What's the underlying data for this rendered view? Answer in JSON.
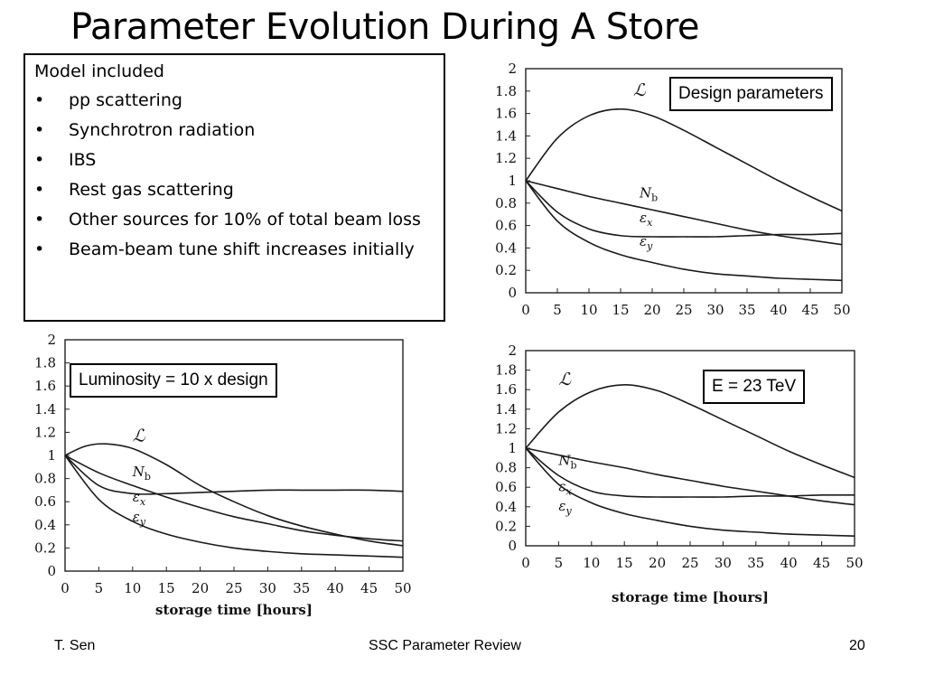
{
  "slide": {
    "title": "Parameter Evolution During A Store",
    "model_box": {
      "heading": "Model included",
      "bullet_glyph": "•",
      "items": [
        "pp scattering",
        "Synchrotron radiation",
        "IBS",
        "Rest gas scattering",
        "Other sources for 10% of total beam loss",
        "Beam-beam tune shift increases initially"
      ]
    },
    "footer": {
      "left": "T. Sen",
      "center": "SSC Parameter Review",
      "right": "20"
    }
  },
  "chart_data": [
    {
      "type": "line",
      "callout": "Design parameters",
      "xlabel": "",
      "ylabel": "",
      "xlim": [
        0,
        50
      ],
      "ylim": [
        0,
        2
      ],
      "xticks": [
        0,
        5,
        10,
        15,
        20,
        25,
        30,
        35,
        40,
        45,
        50
      ],
      "yticks": [
        0,
        0.2,
        0.4,
        0.6,
        0.8,
        1,
        1.2,
        1.4,
        1.6,
        1.8,
        2
      ],
      "series": [
        {
          "name": "ℒ",
          "label_at": [
            17,
            1.76
          ],
          "x": [
            0,
            5,
            10,
            15,
            20,
            25,
            30,
            35,
            40,
            45,
            50
          ],
          "y": [
            1.0,
            1.38,
            1.58,
            1.64,
            1.58,
            1.45,
            1.3,
            1.15,
            1.0,
            0.86,
            0.73
          ]
        },
        {
          "name": "Nb",
          "label_at": [
            18,
            0.85
          ],
          "x": [
            0,
            5,
            10,
            15,
            20,
            25,
            30,
            35,
            40,
            45,
            50
          ],
          "y": [
            1.0,
            0.93,
            0.86,
            0.8,
            0.74,
            0.68,
            0.62,
            0.56,
            0.51,
            0.47,
            0.43
          ]
        },
        {
          "name": "εx",
          "label_at": [
            18,
            0.63
          ],
          "x": [
            0,
            5,
            10,
            15,
            20,
            25,
            30,
            35,
            40,
            45,
            50
          ],
          "y": [
            1.0,
            0.72,
            0.57,
            0.51,
            0.5,
            0.5,
            0.5,
            0.51,
            0.52,
            0.52,
            0.53
          ]
        },
        {
          "name": "εy",
          "label_at": [
            18,
            0.42
          ],
          "x": [
            0,
            5,
            10,
            15,
            20,
            25,
            30,
            35,
            40,
            45,
            50
          ],
          "y": [
            1.0,
            0.64,
            0.45,
            0.34,
            0.27,
            0.21,
            0.17,
            0.15,
            0.13,
            0.12,
            0.11
          ]
        }
      ]
    },
    {
      "type": "line",
      "callout": "Luminosity = 10 x  design",
      "xlabel": "storage time [hours]",
      "ylabel": "",
      "xlim": [
        0,
        50
      ],
      "ylim": [
        0,
        2
      ],
      "xticks": [
        0,
        5,
        10,
        15,
        20,
        25,
        30,
        35,
        40,
        45,
        50
      ],
      "yticks": [
        0,
        0.2,
        0.4,
        0.6,
        0.8,
        1,
        1.2,
        1.4,
        1.6,
        1.8,
        2
      ],
      "series": [
        {
          "name": "ℒ",
          "label_at": [
            10,
            1.12
          ],
          "x": [
            0,
            3,
            6,
            10,
            15,
            20,
            25,
            30,
            35,
            40,
            45,
            50
          ],
          "y": [
            1.0,
            1.08,
            1.1,
            1.06,
            0.92,
            0.74,
            0.6,
            0.48,
            0.39,
            0.32,
            0.26,
            0.22
          ]
        },
        {
          "name": "Nb",
          "label_at": [
            10,
            0.82
          ],
          "x": [
            0,
            5,
            10,
            15,
            20,
            25,
            30,
            35,
            40,
            45,
            50
          ],
          "y": [
            1.0,
            0.85,
            0.74,
            0.64,
            0.55,
            0.47,
            0.41,
            0.35,
            0.31,
            0.28,
            0.26
          ]
        },
        {
          "name": "εx",
          "label_at": [
            10,
            0.6
          ],
          "x": [
            0,
            5,
            10,
            15,
            20,
            25,
            30,
            35,
            40,
            45,
            50
          ],
          "y": [
            1.0,
            0.74,
            0.67,
            0.67,
            0.68,
            0.69,
            0.7,
            0.7,
            0.7,
            0.7,
            0.69
          ]
        },
        {
          "name": "εy",
          "label_at": [
            10,
            0.43
          ],
          "x": [
            0,
            5,
            10,
            15,
            20,
            25,
            30,
            35,
            40,
            45,
            50
          ],
          "y": [
            1.0,
            0.62,
            0.43,
            0.32,
            0.25,
            0.2,
            0.17,
            0.15,
            0.14,
            0.13,
            0.12
          ]
        }
      ]
    },
    {
      "type": "line",
      "callout": "E = 23 TeV",
      "xlabel": "storage time [hours]",
      "ylabel": "",
      "xlim": [
        0,
        50
      ],
      "ylim": [
        0,
        2
      ],
      "xticks": [
        0,
        5,
        10,
        15,
        20,
        25,
        30,
        35,
        40,
        45,
        50
      ],
      "yticks": [
        0,
        0.2,
        0.4,
        0.6,
        0.8,
        1,
        1.2,
        1.4,
        1.6,
        1.8,
        2
      ],
      "series": [
        {
          "name": "ℒ",
          "label_at": [
            5,
            1.65
          ],
          "x": [
            0,
            5,
            10,
            15,
            20,
            25,
            30,
            35,
            40,
            45,
            50
          ],
          "y": [
            1.0,
            1.37,
            1.58,
            1.65,
            1.59,
            1.45,
            1.29,
            1.13,
            0.97,
            0.83,
            0.7
          ]
        },
        {
          "name": "Nb",
          "label_at": [
            5,
            0.83
          ],
          "x": [
            0,
            5,
            10,
            15,
            20,
            25,
            30,
            35,
            40,
            45,
            50
          ],
          "y": [
            1.0,
            0.93,
            0.86,
            0.8,
            0.73,
            0.67,
            0.61,
            0.56,
            0.51,
            0.46,
            0.42
          ]
        },
        {
          "name": "εx",
          "label_at": [
            5,
            0.56
          ],
          "x": [
            0,
            5,
            10,
            15,
            20,
            25,
            30,
            35,
            40,
            45,
            50
          ],
          "y": [
            1.0,
            0.72,
            0.56,
            0.51,
            0.5,
            0.5,
            0.5,
            0.51,
            0.51,
            0.52,
            0.52
          ]
        },
        {
          "name": "εy",
          "label_at": [
            5,
            0.36
          ],
          "x": [
            0,
            5,
            10,
            15,
            20,
            25,
            30,
            35,
            40,
            45,
            50
          ],
          "y": [
            1.0,
            0.63,
            0.44,
            0.33,
            0.26,
            0.2,
            0.16,
            0.14,
            0.12,
            0.11,
            0.1
          ]
        }
      ]
    }
  ]
}
